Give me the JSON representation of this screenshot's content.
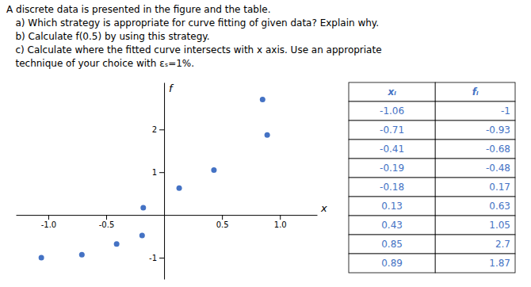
{
  "chart_data": {
    "type": "scatter",
    "title": [
      "A discrete data is presented in the figure and the table.",
      "   a) Which strategy is appropriate for curve fitting of given data? Explain why.",
      "   b) Calculate f(0.5) by using this strategy.",
      "   c) Calculate where the fitted curve intersects with x axis. Use an appropriate",
      "   technique of your choice with εₛ=1%."
    ],
    "x": [
      -1.06,
      -0.71,
      -0.41,
      -0.19,
      -0.18,
      0.13,
      0.43,
      0.85,
      0.89
    ],
    "values": [
      -1,
      -0.93,
      -0.68,
      -0.48,
      0.17,
      0.63,
      1.05,
      2.7,
      1.87
    ],
    "color": "#4472C4",
    "xlabel": "x",
    "ylabel": "f",
    "xlim": [
      -1.28,
      1.32
    ],
    "ylim": [
      -1.5,
      3.1
    ],
    "xticks": [
      {
        "value": -1.0,
        "label": "-1.0"
      },
      {
        "value": -0.5,
        "label": "-0.5"
      },
      {
        "value": 0.5,
        "label": "0.5"
      },
      {
        "value": 1.0,
        "label": "1.0"
      }
    ],
    "yticks": [
      -1,
      1,
      2
    ],
    "grid": false,
    "table_headers": [
      "xᵢ",
      "fᵢ"
    ]
  }
}
